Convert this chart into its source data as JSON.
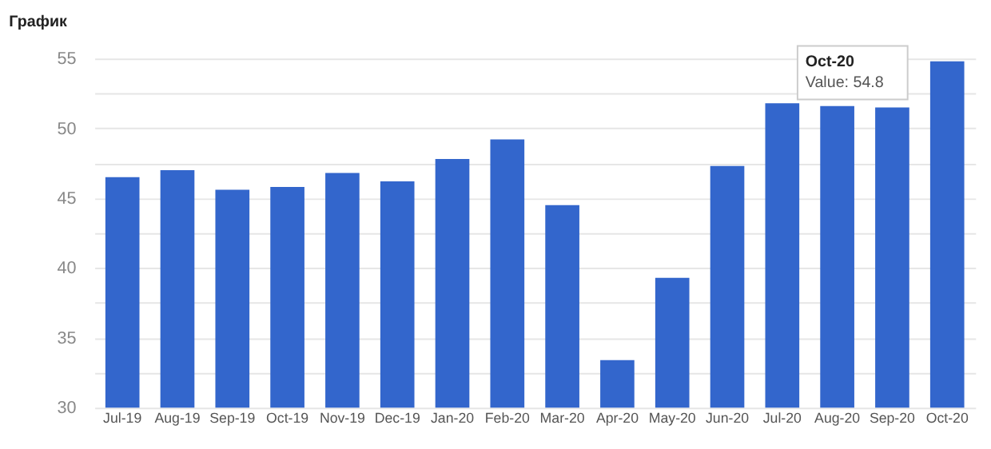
{
  "chart_data": {
    "type": "bar",
    "title": "График",
    "categories": [
      "Jul-19",
      "Aug-19",
      "Sep-19",
      "Oct-19",
      "Nov-19",
      "Dec-19",
      "Jan-20",
      "Feb-20",
      "Mar-20",
      "Apr-20",
      "May-20",
      "Jun-20",
      "Jul-20",
      "Aug-20",
      "Sep-20",
      "Oct-20"
    ],
    "values": [
      46.5,
      47.0,
      45.6,
      45.8,
      46.8,
      46.2,
      47.8,
      49.2,
      44.5,
      33.4,
      39.3,
      47.3,
      51.8,
      51.6,
      51.5,
      54.8
    ],
    "color": "#3366cc",
    "ylim": [
      30,
      55
    ],
    "yticks": [
      30,
      {
        "value": 32.5,
        "label": null
      },
      35,
      {
        "value": 37.5,
        "label": null
      },
      40,
      {
        "value": 42.5,
        "label": null
      },
      45,
      {
        "value": 47.5,
        "label": null
      },
      50,
      {
        "value": 52.5,
        "label": null
      },
      55
    ],
    "grid": "y",
    "annotations": [
      "Oct-20",
      "Value: 54.8"
    ]
  }
}
